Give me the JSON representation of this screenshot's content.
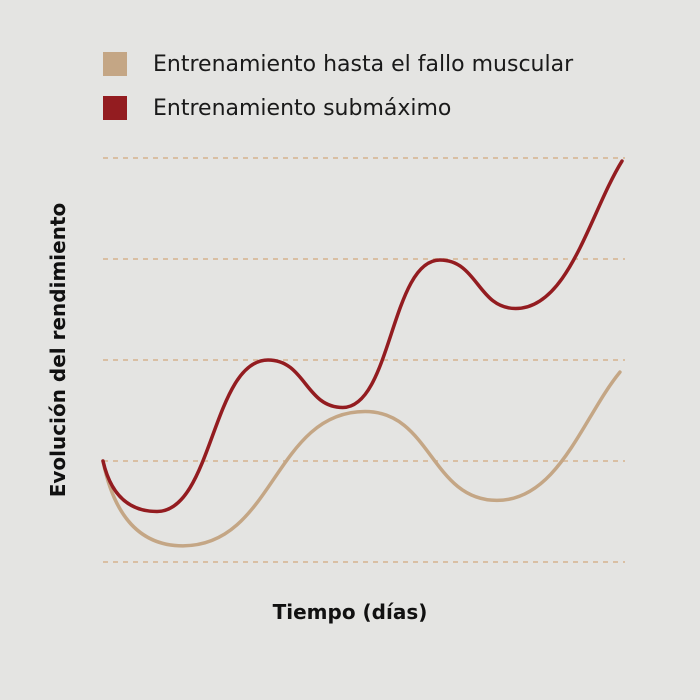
{
  "chart_data": {
    "type": "line",
    "title": "",
    "xlabel": "Tiempo (días)",
    "ylabel": "Evolución del rendimiento",
    "xlim": [
      0,
      10
    ],
    "ylim": [
      0,
      4
    ],
    "grid": {
      "horizontal": true,
      "style": "dashed",
      "levels": [
        0,
        1,
        2,
        3,
        4
      ]
    },
    "legend_position": "top-left",
    "series": [
      {
        "name": "Entrenamiento hasta el fallo muscular",
        "color": "#c4a685",
        "x": [
          0,
          1.54,
          5.05,
          7.59,
          9.96
        ],
        "y": [
          1.0,
          0.16,
          1.49,
          0.61,
          1.88
        ]
      },
      {
        "name": "Entrenamiento submáximo",
        "color": "#931c20",
        "x": [
          0,
          1.04,
          3.18,
          4.62,
          6.49,
          7.95,
          10
        ],
        "y": [
          1.0,
          0.5,
          2.0,
          1.53,
          2.99,
          2.51,
          3.97
        ]
      }
    ]
  },
  "colors": {
    "background": "#e4e4e2",
    "grid": "#d9bfa3"
  }
}
